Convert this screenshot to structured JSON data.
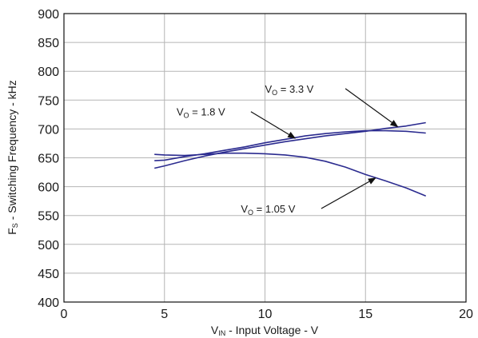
{
  "chart_data": {
    "type": "line",
    "title": "",
    "xlabel": {
      "main": "V",
      "sub": "IN",
      "rest": " - Input Voltage - V"
    },
    "ylabel": {
      "main": "F",
      "sub": "S",
      "rest": " - Switching Frequency - kHz"
    },
    "xlim": [
      0,
      20
    ],
    "ylim": [
      400,
      900
    ],
    "xticks": [
      0,
      5,
      10,
      15,
      20
    ],
    "yticks": [
      400,
      450,
      500,
      550,
      600,
      650,
      700,
      750,
      800,
      850,
      900
    ],
    "grid": true,
    "line_color": "#2b2b8f",
    "series": [
      {
        "name": {
          "main": "V",
          "sub": "O",
          "rest": " = 3.3 V"
        },
        "x": [
          4.5,
          5,
          6,
          7,
          8,
          9,
          10,
          11,
          12,
          13,
          14,
          15,
          16,
          17,
          18
        ],
        "y": [
          632,
          636,
          645,
          653,
          660,
          666,
          672,
          678,
          683,
          688,
          692,
          696,
          701,
          705,
          711
        ]
      },
      {
        "name": {
          "main": "V",
          "sub": "O",
          "rest": " = 1.8 V"
        },
        "x": [
          4.5,
          5,
          6,
          7,
          8,
          9,
          10,
          11,
          12,
          13,
          14,
          15,
          16,
          17,
          18
        ],
        "y": [
          645,
          646,
          652,
          657,
          663,
          669,
          676,
          682,
          688,
          692,
          695,
          697,
          697,
          696,
          693
        ]
      },
      {
        "name": {
          "main": "V",
          "sub": "O",
          "rest": " = 1.05 V"
        },
        "x": [
          4.5,
          5,
          6,
          7,
          8,
          9,
          10,
          11,
          12,
          13,
          14,
          15,
          16,
          17,
          18
        ],
        "y": [
          656,
          655,
          654,
          656,
          658,
          658,
          657,
          655,
          651,
          644,
          634,
          621,
          610,
          598,
          584
        ]
      }
    ],
    "annotations": [
      {
        "series": 0,
        "label_x": 10.0,
        "label_y": 770,
        "arrow_from_x": 14.0,
        "arrow_from_y": 770,
        "arrow_to_x": 16.6,
        "arrow_to_y": 704
      },
      {
        "series": 1,
        "label_x": 5.6,
        "label_y": 730,
        "arrow_from_x": 9.3,
        "arrow_from_y": 730,
        "arrow_to_x": 11.5,
        "arrow_to_y": 684
      },
      {
        "series": 2,
        "label_x": 8.8,
        "label_y": 562,
        "arrow_from_x": 12.8,
        "arrow_from_y": 562,
        "arrow_to_x": 15.5,
        "arrow_to_y": 615
      }
    ]
  }
}
